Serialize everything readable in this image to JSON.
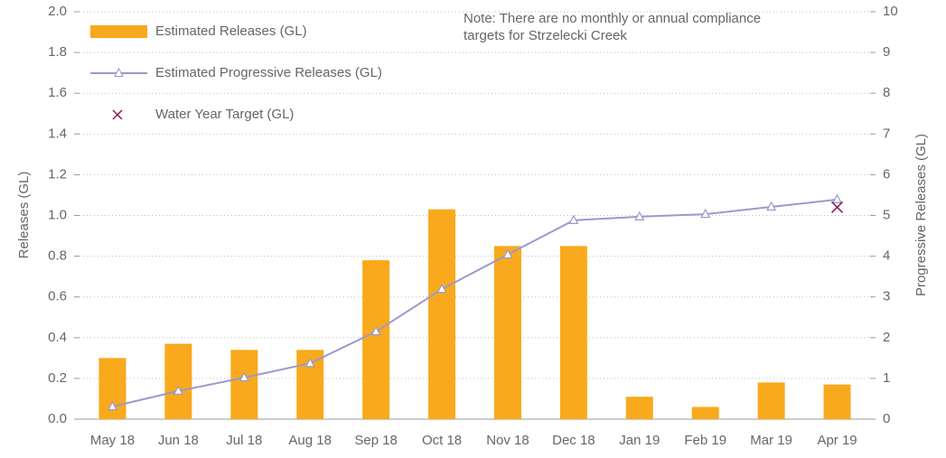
{
  "chart_data": {
    "type": "bar",
    "note": [
      "Note: There are no monthly or annual compliance",
      "targets for Strzelecki Creek"
    ],
    "y_label": "Releases (GL)",
    "y2_label": "Progressive Releases (GL)",
    "categories": [
      "May 18",
      "Jun 18",
      "Jul 18",
      "Aug 18",
      "Sep 18",
      "Oct 18",
      "Nov 18",
      "Dec 18",
      "Jan 19",
      "Feb 19",
      "Mar 19",
      "Apr 19"
    ],
    "series": [
      {
        "name": "Estimated Releases (GL)",
        "type": "bar",
        "color": "#f9a91c",
        "values": [
          0.3,
          0.37,
          0.34,
          0.34,
          0.78,
          1.03,
          0.85,
          0.85,
          0.11,
          0.06,
          0.18,
          0.17
        ]
      },
      {
        "name": "Estimated Progressive Releases (GL)",
        "type": "line",
        "axis": "y2",
        "color": "#9a9acd",
        "values": [
          0.31,
          0.69,
          1.02,
          1.37,
          2.15,
          3.19,
          4.04,
          4.88,
          4.97,
          5.03,
          5.21,
          5.39
        ]
      },
      {
        "name": "Water Year Target (GL)",
        "type": "scatter",
        "axis": "y2",
        "color": "#8b1d5c",
        "values": [
          null,
          null,
          null,
          null,
          null,
          null,
          null,
          null,
          null,
          null,
          null,
          5.2
        ]
      }
    ],
    "ylim": [
      0,
      2
    ],
    "yticks": [
      {
        "value": 0,
        "label": "0.0"
      },
      0.2,
      0.4,
      0.6,
      0.8,
      {
        "value": 1,
        "label": "1.0"
      },
      1.2,
      1.4,
      1.6,
      1.8,
      {
        "value": 2,
        "label": "2.0"
      }
    ],
    "y2lim": [
      0,
      10
    ],
    "y2ticks": [
      0,
      1,
      2,
      3,
      4,
      5,
      6,
      7,
      8,
      9,
      10
    ],
    "grid": true,
    "legend": "top-left"
  }
}
